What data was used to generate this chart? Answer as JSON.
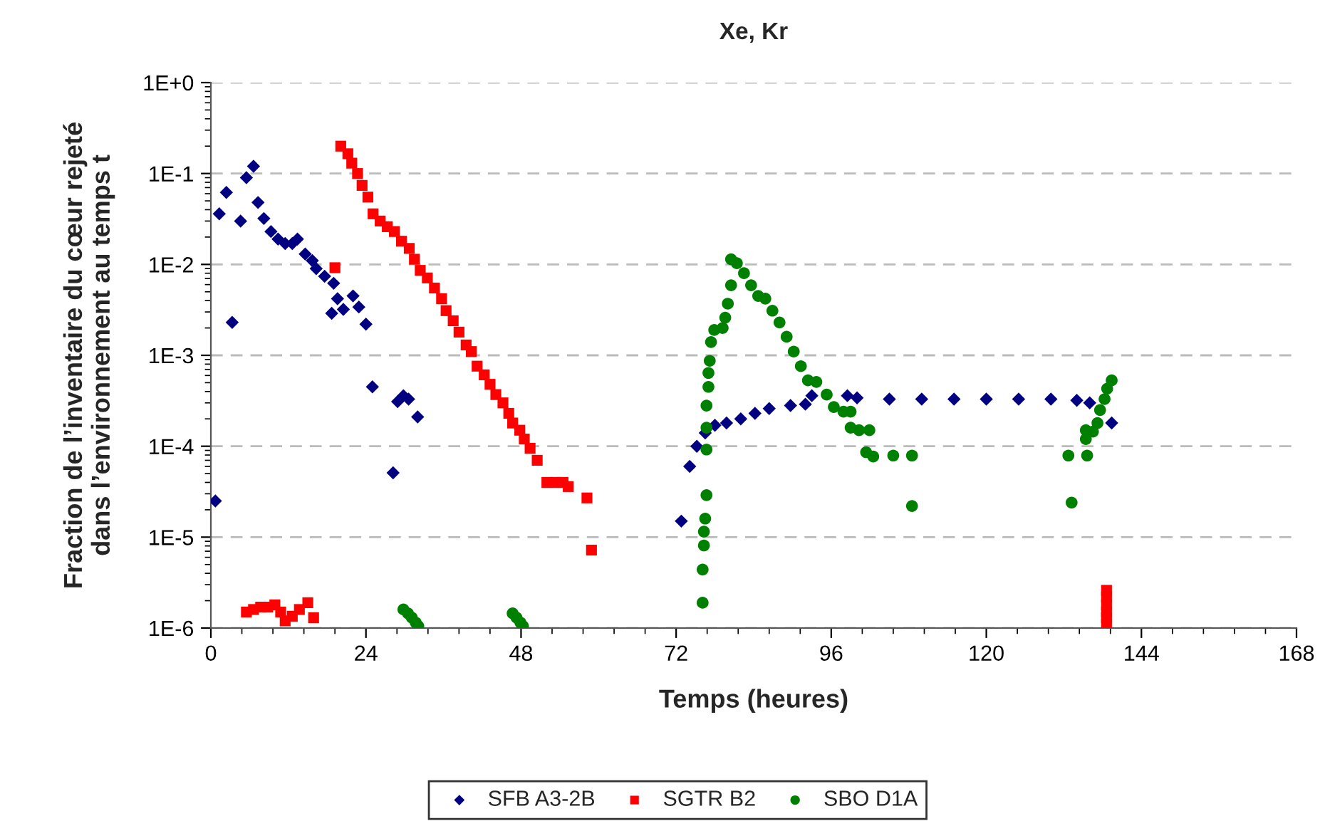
{
  "chart_data": {
    "type": "scatter",
    "title": "Xe, Kr",
    "xlabel": "Temps (heures)",
    "ylabel": "Fraction de l’inventaire du cœur rejeté\ndans l’environnement au temps t",
    "log": "y",
    "grid": "y",
    "legend": "bottom",
    "xlim": [
      0,
      168
    ],
    "xticks": [
      0,
      24,
      48,
      72,
      96,
      120,
      144,
      168
    ],
    "ylim": [
      1e-06,
      1
    ],
    "yticks": [
      {
        "value": 1e-06,
        "label": "1E-6"
      },
      {
        "value": 1e-05,
        "label": "1E-5"
      },
      {
        "value": 0.0001,
        "label": "1E-4"
      },
      {
        "value": 0.001,
        "label": "1E-3"
      },
      {
        "value": 0.01,
        "label": "1E-2"
      },
      {
        "value": 0.1,
        "label": "1E-1"
      },
      {
        "value": 1,
        "label": "1E+0"
      }
    ],
    "series": [
      {
        "name": "SFB A3-2B",
        "color": "#000080",
        "marker": "diamond",
        "x": [
          0.7,
          1.3,
          2.4,
          3.3,
          4.6,
          5.5,
          6.6,
          7.3,
          8.2,
          9.3,
          10.4,
          11.5,
          12.6,
          13.4,
          14.6,
          15.7,
          16.3,
          17.6,
          19.0,
          19.6,
          18.7,
          20.5,
          22.0,
          22.9,
          24.0,
          25.0,
          28.2,
          28.9,
          29.8,
          30.6,
          32.0,
          72.8,
          74.1,
          75.2,
          76.5,
          78.0,
          79.8,
          82.0,
          84.2,
          86.4,
          89.7,
          92.0,
          93.0,
          98.5,
          100.0,
          105.0,
          110.0,
          115.0,
          120.0,
          125.0,
          130.0,
          134.0,
          136.0,
          137.5,
          139.4
        ],
        "values": [
          2.5e-05,
          0.036,
          0.062,
          0.0023,
          0.03,
          0.09,
          0.12,
          0.048,
          0.032,
          0.023,
          0.019,
          0.017,
          0.017,
          0.019,
          0.013,
          0.011,
          0.009,
          0.0074,
          0.0062,
          0.0042,
          0.0029,
          0.0032,
          0.0045,
          0.0034,
          0.0022,
          0.00045,
          5.1e-05,
          0.00031,
          0.00036,
          0.00033,
          0.00021,
          1.5e-05,
          6e-05,
          0.0001,
          0.00014,
          0.00017,
          0.00018,
          0.0002,
          0.00023,
          0.00026,
          0.00028,
          0.00029,
          0.00036,
          0.00036,
          0.00034,
          0.00033,
          0.00033,
          0.00033,
          0.00033,
          0.00033,
          0.00033,
          0.00032,
          0.0003,
          null,
          0.00018
        ]
      },
      {
        "name": "SGTR B2",
        "color": "#ff0000",
        "marker": "square",
        "x": [
          5.5,
          6.6,
          7.7,
          8.8,
          9.9,
          10.8,
          11.5,
          12.6,
          13.7,
          15.0,
          15.9,
          19.2,
          20.1,
          21.2,
          21.8,
          22.7,
          23.4,
          24.3,
          25.1,
          26.2,
          27.3,
          28.4,
          29.5,
          30.7,
          31.5,
          32.4,
          33.5,
          34.6,
          35.7,
          36.4,
          37.5,
          38.4,
          39.5,
          40.3,
          41.2,
          42.3,
          43.2,
          44.1,
          45.2,
          46.1,
          46.7,
          47.8,
          48.5,
          49.4,
          50.5,
          52.0,
          53.4,
          54.5,
          55.3,
          58.2,
          58.9,
          138.6,
          138.6,
          138.6,
          138.6,
          138.6,
          138.6
        ],
        "values": [
          1.5e-06,
          1.6e-06,
          1.7e-06,
          1.7e-06,
          1.8e-06,
          1.5e-06,
          1.2e-06,
          1.35e-06,
          1.6e-06,
          1.9e-06,
          1.3e-06,
          0.0092,
          0.2,
          0.165,
          0.13,
          0.1,
          0.074,
          0.055,
          0.036,
          0.03,
          0.026,
          0.023,
          0.018,
          0.015,
          0.0114,
          0.0086,
          0.0071,
          0.0055,
          0.0042,
          0.0031,
          0.0024,
          0.0018,
          0.0013,
          0.0011,
          0.00076,
          0.00061,
          0.00048,
          0.00037,
          0.0003,
          0.00023,
          0.00018,
          0.00015,
          0.00012,
          9.5e-05,
          7e-05,
          4e-05,
          4e-05,
          4e-05,
          3.6e-05,
          2.7e-05,
          7.2e-06,
          2.6e-06,
          2.2e-06,
          1.8e-06,
          1.5e-06,
          1.3e-06,
          1.1e-06
        ]
      },
      {
        "name": "SBO D1A",
        "color": "#008000",
        "marker": "circle",
        "x": [
          29.8,
          30.5,
          31.1,
          31.7,
          32.1,
          46.7,
          47.3,
          47.9,
          48.3,
          76.1,
          76.1,
          76.3,
          76.3,
          76.5,
          76.7,
          76.7,
          76.7,
          76.7,
          77.0,
          77.0,
          77.2,
          77.4,
          77.9,
          79.2,
          79.6,
          80.0,
          80.5,
          80.5,
          81.4,
          82.5,
          83.6,
          84.7,
          85.8,
          86.9,
          88.0,
          89.1,
          90.2,
          91.3,
          92.4,
          93.7,
          95.3,
          96.4,
          97.9,
          99.0,
          99.0,
          100.3,
          101.9,
          101.4,
          102.5,
          105.6,
          108.5,
          108.5,
          133.2,
          132.7,
          135.6,
          135.4,
          135.4,
          136.5,
          137.2,
          137.6,
          138.3,
          138.7,
          139.4
        ],
        "values": [
          1.6e-06,
          1.45e-06,
          1.3e-06,
          1.15e-06,
          1.05e-06,
          1.45e-06,
          1.3e-06,
          1.15e-06,
          1.05e-06,
          1.9e-06,
          4.4e-06,
          8.1e-06,
          1.15e-05,
          1.6e-05,
          2.9e-05,
          9.2e-05,
          0.00016,
          0.00028,
          0.00045,
          0.00064,
          0.00087,
          0.0014,
          0.0019,
          0.002,
          0.0026,
          0.0037,
          0.0059,
          0.0114,
          0.0103,
          0.008,
          0.0059,
          0.0045,
          0.0042,
          0.0031,
          0.0023,
          0.0016,
          0.0011,
          0.00076,
          0.00053,
          0.00051,
          0.00037,
          0.00027,
          0.00024,
          0.00024,
          0.00016,
          0.00015,
          0.00015,
          8.6e-05,
          7.7e-05,
          7.9e-05,
          7.9e-05,
          2.2e-05,
          2.4e-05,
          7.9e-05,
          7.9e-05,
          0.00012,
          0.00015,
          0.000145,
          0.00018,
          0.00025,
          0.00033,
          0.00043,
          0.00053
        ]
      }
    ]
  }
}
